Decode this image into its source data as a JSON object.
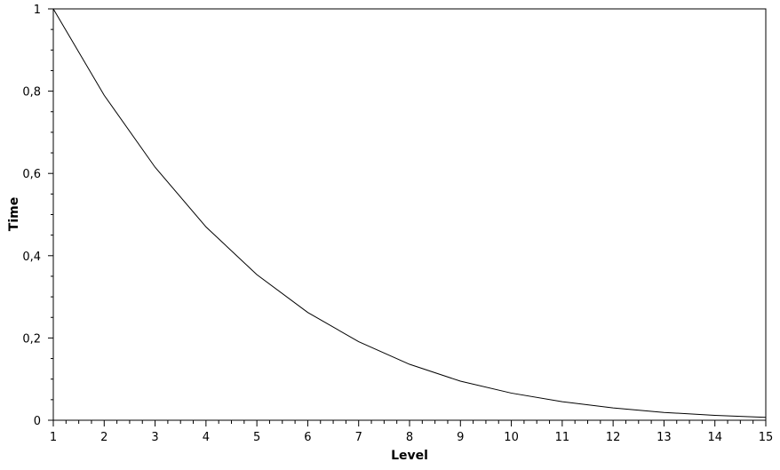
{
  "chart_data": {
    "type": "line",
    "title": "",
    "xlabel": "Level",
    "ylabel": "Time",
    "xlim": [
      1,
      15
    ],
    "ylim": [
      0,
      1
    ],
    "x_ticks": [
      "1",
      "2",
      "3",
      "4",
      "5",
      "6",
      "7",
      "8",
      "9",
      "10",
      "11",
      "12",
      "13",
      "14",
      "15"
    ],
    "y_ticks": [
      "0",
      "0,2",
      "0,4",
      "0,6",
      "0,8",
      "1"
    ],
    "grid": false,
    "legend": "none",
    "series": [
      {
        "color": "#000000",
        "x": [
          1,
          2,
          3,
          4,
          5,
          6,
          7,
          8,
          9,
          10,
          11,
          12,
          13,
          14,
          15
        ],
        "y": [
          1.0,
          0.79,
          0.615,
          0.47,
          0.354,
          0.262,
          0.191,
          0.136,
          0.095,
          0.066,
          0.045,
          0.03,
          0.019,
          0.012,
          0.007
        ]
      }
    ]
  }
}
